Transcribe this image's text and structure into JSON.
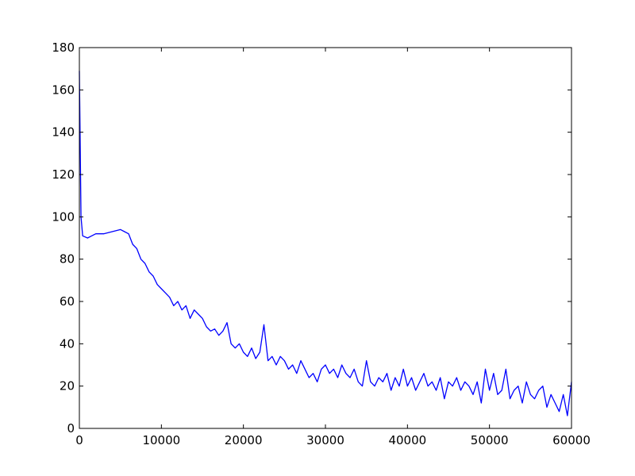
{
  "chart_data": {
    "type": "line",
    "x": [
      0,
      200,
      400,
      1000,
      1500,
      2000,
      3000,
      4000,
      5000,
      5500,
      6000,
      6500,
      7000,
      7500,
      8000,
      8500,
      9000,
      9500,
      10000,
      10500,
      11000,
      11500,
      12000,
      12500,
      13000,
      13500,
      14000,
      14500,
      15000,
      15500,
      16000,
      16500,
      17000,
      17500,
      18000,
      18500,
      19000,
      19500,
      20000,
      20500,
      21000,
      21500,
      22000,
      22500,
      23000,
      23500,
      24000,
      24500,
      25000,
      25500,
      26000,
      26500,
      27000,
      27500,
      28000,
      28500,
      29000,
      29500,
      30000,
      30500,
      31000,
      31500,
      32000,
      32500,
      33000,
      33500,
      34000,
      34500,
      35000,
      35500,
      36000,
      36500,
      37000,
      37500,
      38000,
      38500,
      39000,
      39500,
      40000,
      40500,
      41000,
      41500,
      42000,
      42500,
      43000,
      43500,
      44000,
      44500,
      45000,
      45500,
      46000,
      46500,
      47000,
      47500,
      48000,
      48500,
      49000,
      49500,
      50000,
      50500,
      51000,
      51500,
      52000,
      52500,
      53000,
      53500,
      54000,
      54500,
      55000,
      55500,
      56000,
      56500,
      57000,
      57500,
      58000,
      58500,
      59000,
      59500,
      60000
    ],
    "series": [
      {
        "color": "#0000ff",
        "values": [
          169,
          100,
          91,
          90,
          91,
          92,
          92,
          93,
          94,
          93,
          92,
          87,
          85,
          80,
          78,
          74,
          72,
          68,
          66,
          64,
          62,
          58,
          60,
          56,
          58,
          52,
          56,
          54,
          52,
          48,
          46,
          47,
          44,
          46,
          50,
          40,
          38,
          40,
          36,
          34,
          38,
          33,
          36,
          49,
          32,
          34,
          30,
          34,
          32,
          28,
          30,
          26,
          32,
          28,
          24,
          26,
          22,
          28,
          30,
          26,
          28,
          24,
          30,
          26,
          24,
          28,
          22,
          20,
          32,
          22,
          20,
          24,
          22,
          26,
          18,
          24,
          20,
          28,
          20,
          24,
          18,
          22,
          26,
          20,
          22,
          18,
          24,
          14,
          22,
          20,
          24,
          18,
          22,
          20,
          16,
          22,
          12,
          28,
          18,
          26,
          16,
          18,
          28,
          14,
          18,
          20,
          12,
          22,
          16,
          14,
          18,
          20,
          10,
          16,
          12,
          8,
          16,
          6,
          22
        ]
      }
    ],
    "xlim": [
      0,
      60000
    ],
    "ylim": [
      0,
      180
    ],
    "xticks": [
      0,
      10000,
      20000,
      30000,
      40000,
      50000,
      60000
    ],
    "yticks": [
      0,
      20,
      40,
      60,
      80,
      100,
      120,
      140,
      160,
      180
    ]
  }
}
